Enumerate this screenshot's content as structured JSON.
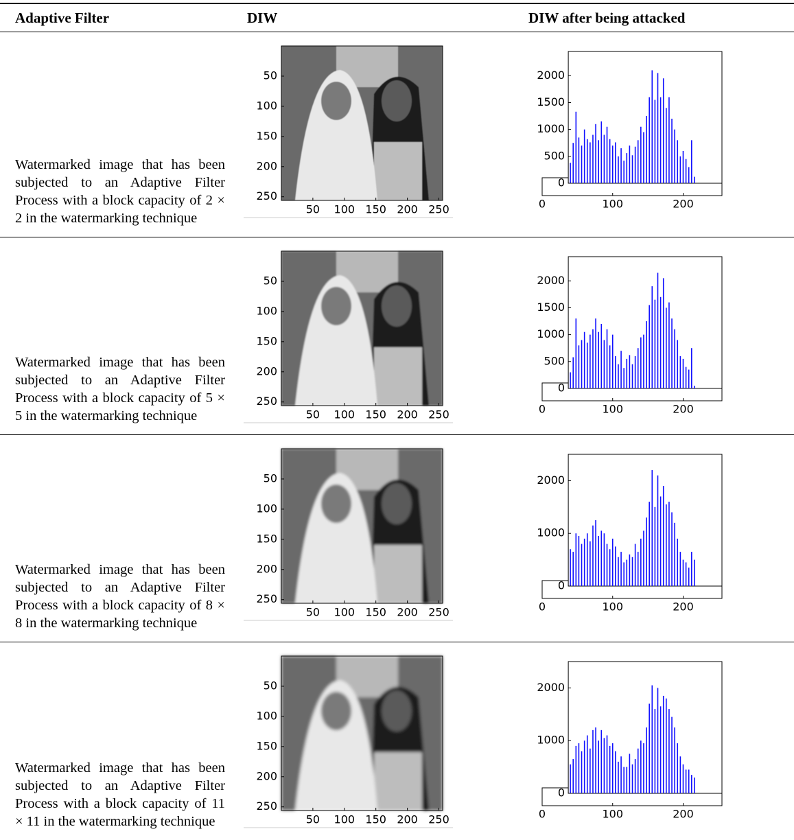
{
  "table": {
    "headers": [
      "Adaptive Filter",
      "DIW",
      "DIW after being attacked"
    ],
    "rows": [
      {
        "description": "Watermarked image that has been subjected to an Adaptive Filter Process with a block capacity of 2 × 2 in the watermarking technique",
        "image": {
          "xlim": [
            0,
            256
          ],
          "ylim": [
            0,
            256
          ],
          "xticks": [
            50,
            100,
            150,
            200,
            250
          ],
          "yticks": [
            50,
            100,
            150,
            200,
            250
          ]
        },
        "histogram": {
          "type": "bar",
          "color": "#1010ff",
          "xlim": [
            0,
            255
          ],
          "ylim": [
            0,
            2450
          ],
          "xticks": [
            0,
            100,
            200
          ],
          "yticks": [
            0,
            500,
            1000,
            1500,
            2000
          ],
          "x": [
            40,
            44,
            48,
            52,
            56,
            60,
            64,
            68,
            72,
            76,
            80,
            84,
            88,
            92,
            96,
            100,
            104,
            108,
            112,
            116,
            120,
            124,
            128,
            132,
            136,
            140,
            144,
            148,
            152,
            156,
            160,
            164,
            168,
            172,
            176,
            180,
            184,
            188,
            192,
            196,
            200,
            204,
            208,
            212,
            216
          ],
          "values": [
            380,
            750,
            1330,
            850,
            700,
            1000,
            820,
            760,
            900,
            1100,
            800,
            1150,
            900,
            1050,
            820,
            700,
            760,
            500,
            650,
            420,
            560,
            700,
            520,
            680,
            800,
            1050,
            950,
            1250,
            1600,
            2100,
            1550,
            2050,
            1600,
            1950,
            1400,
            1600,
            1200,
            1000,
            800,
            500,
            600,
            450,
            300,
            800,
            120
          ]
        }
      },
      {
        "description": "Watermarked image that has been subjected to an Adaptive Filter Process with a block capacity of 5 × 5 in the watermarking technique",
        "image": {
          "xlim": [
            0,
            256
          ],
          "ylim": [
            0,
            256
          ],
          "xticks": [
            50,
            100,
            150,
            200,
            250
          ],
          "yticks": [
            50,
            100,
            150,
            200,
            250
          ]
        },
        "histogram": {
          "type": "bar",
          "color": "#1010ff",
          "xlim": [
            0,
            255
          ],
          "ylim": [
            0,
            2450
          ],
          "xticks": [
            0,
            100,
            200
          ],
          "yticks": [
            0,
            500,
            1000,
            1500,
            2000
          ],
          "x": [
            40,
            44,
            48,
            52,
            56,
            60,
            64,
            68,
            72,
            76,
            80,
            84,
            88,
            92,
            96,
            100,
            104,
            108,
            112,
            116,
            120,
            124,
            128,
            132,
            136,
            140,
            144,
            148,
            152,
            156,
            160,
            164,
            168,
            172,
            176,
            180,
            184,
            188,
            192,
            196,
            200,
            204,
            208,
            212,
            216
          ],
          "values": [
            300,
            580,
            1300,
            800,
            900,
            1050,
            850,
            1000,
            1100,
            1300,
            1050,
            1200,
            900,
            1100,
            800,
            1000,
            600,
            450,
            700,
            380,
            550,
            620,
            450,
            600,
            750,
            950,
            1000,
            1250,
            1550,
            1900,
            1650,
            2150,
            1700,
            2050,
            1500,
            1600,
            1300,
            1100,
            900,
            600,
            550,
            400,
            350,
            750,
            50
          ]
        }
      },
      {
        "description": "Watermarked image that has been subjected to an Adaptive Filter Process with a block capacity of 8 × 8 in the watermarking technique",
        "image": {
          "xlim": [
            0,
            256
          ],
          "ylim": [
            0,
            256
          ],
          "xticks": [
            50,
            100,
            150,
            200,
            250
          ],
          "yticks": [
            50,
            100,
            150,
            200,
            250
          ]
        },
        "histogram": {
          "type": "bar",
          "color": "#1010ff",
          "xlim": [
            0,
            255
          ],
          "ylim": [
            0,
            2500
          ],
          "xticks": [
            0,
            100,
            200
          ],
          "yticks": [
            0,
            1000,
            2000
          ],
          "x": [
            40,
            44,
            48,
            52,
            56,
            60,
            64,
            68,
            72,
            76,
            80,
            84,
            88,
            92,
            96,
            100,
            104,
            108,
            112,
            116,
            120,
            124,
            128,
            132,
            136,
            140,
            144,
            148,
            152,
            156,
            160,
            164,
            168,
            172,
            176,
            180,
            184,
            188,
            192,
            196,
            200,
            204,
            208,
            212,
            216
          ],
          "values": [
            700,
            650,
            1000,
            950,
            800,
            900,
            1000,
            850,
            1150,
            1250,
            950,
            1050,
            1000,
            800,
            700,
            900,
            750,
            550,
            650,
            450,
            500,
            600,
            550,
            800,
            650,
            900,
            1050,
            1300,
            1600,
            2200,
            1500,
            2100,
            1700,
            1900,
            1550,
            1600,
            1400,
            1200,
            900,
            650,
            500,
            450,
            350,
            650,
            500
          ]
        }
      },
      {
        "description": "Watermarked image that has been subjected to an Adaptive Filter Process with a block capacity of 11 × 11 in the watermarking technique",
        "image": {
          "xlim": [
            0,
            256
          ],
          "ylim": [
            0,
            256
          ],
          "xticks": [
            50,
            100,
            150,
            200,
            250
          ],
          "yticks": [
            50,
            100,
            150,
            200,
            250
          ]
        },
        "histogram": {
          "type": "bar",
          "color": "#1010ff",
          "xlim": [
            0,
            255
          ],
          "ylim": [
            0,
            2500
          ],
          "xticks": [
            0,
            100,
            200
          ],
          "yticks": [
            0,
            1000,
            2000
          ],
          "x": [
            40,
            44,
            48,
            52,
            56,
            60,
            64,
            68,
            72,
            76,
            80,
            84,
            88,
            92,
            96,
            100,
            104,
            108,
            112,
            116,
            120,
            124,
            128,
            132,
            136,
            140,
            144,
            148,
            152,
            156,
            160,
            164,
            168,
            172,
            176,
            180,
            184,
            188,
            192,
            196,
            200,
            204,
            208,
            212,
            216
          ],
          "values": [
            550,
            650,
            900,
            950,
            800,
            1000,
            1100,
            850,
            1200,
            1250,
            1000,
            1200,
            1050,
            1100,
            900,
            950,
            800,
            600,
            700,
            500,
            500,
            750,
            550,
            650,
            850,
            1000,
            950,
            1250,
            1700,
            2050,
            1600,
            2000,
            1650,
            1850,
            1800,
            1600,
            1450,
            1250,
            950,
            700,
            550,
            450,
            450,
            350,
            300
          ]
        }
      }
    ]
  }
}
